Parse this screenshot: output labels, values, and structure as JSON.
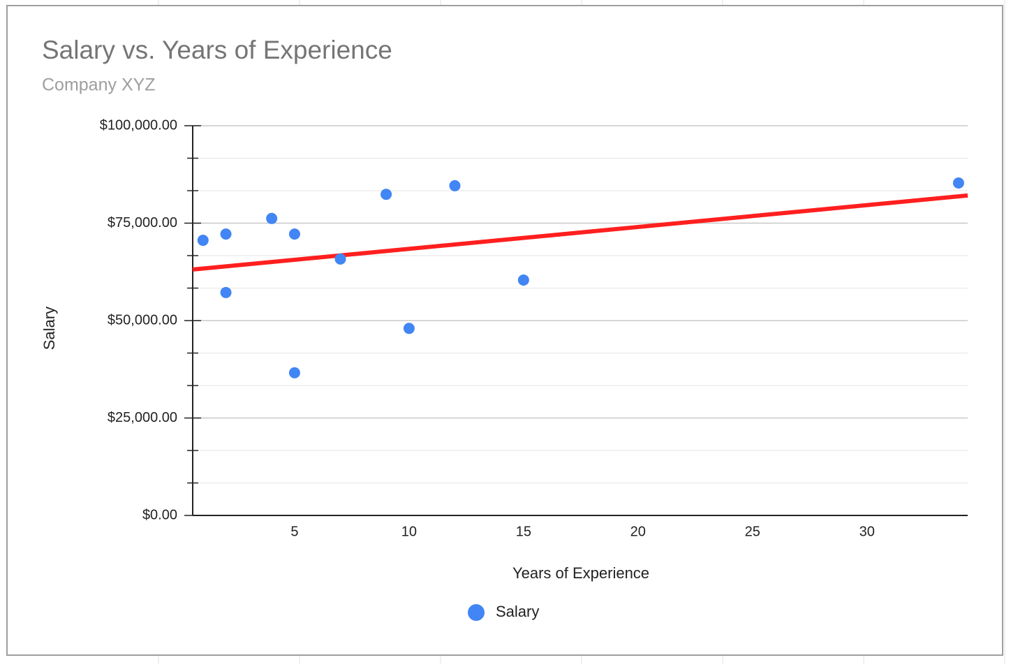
{
  "chart_data": {
    "type": "scatter",
    "title": "Salary vs. Years of Experience",
    "subtitle": "Company XYZ",
    "x_label": "Years of Experience",
    "y_label": "Salary",
    "series": [
      {
        "name": "Salary",
        "color": "#4285f4",
        "x": [
          1,
          2,
          2,
          4,
          5,
          5,
          7,
          9,
          10,
          12,
          15,
          34
        ],
        "values": [
          70600,
          72200,
          57200,
          76200,
          72200,
          36600,
          65800,
          82400,
          48000,
          84600,
          60400,
          85300
        ]
      }
    ],
    "trendline": {
      "color": "#ff1f1f",
      "x": [
        0.55,
        34.4
      ],
      "values": [
        63100,
        82100
      ]
    },
    "xlim": [
      0.55,
      34.4
    ],
    "xticks": [
      5,
      10,
      15,
      20,
      25,
      30
    ],
    "ylim": [
      0,
      100000
    ],
    "yticks": [
      {
        "value": 0,
        "label": "$0.00"
      },
      {
        "value": 25000,
        "label": "$25,000.00"
      },
      {
        "value": 50000,
        "label": "$50,000.00"
      },
      {
        "value": 75000,
        "label": "$75,000.00"
      },
      {
        "value": 100000,
        "label": "$100,000.00"
      }
    ],
    "grid": true,
    "y_minor_divisions": 3,
    "legend": "bottom"
  }
}
